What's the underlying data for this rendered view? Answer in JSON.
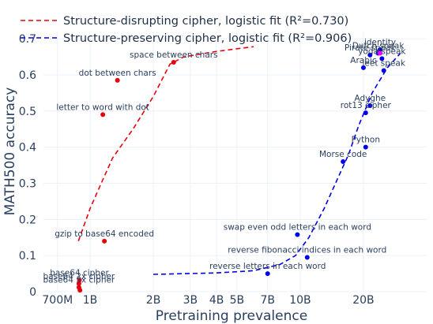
{
  "chart_data": {
    "type": "scatter",
    "xlabel": "Pretraining prevalence",
    "ylabel": "MATH500 accuracy",
    "x_scale": "log",
    "xlim": [
      600000000,
      40000000000
    ],
    "ylim": [
      0,
      0.72
    ],
    "grid": true,
    "legend_position": "top-left",
    "x_ticks": [
      {
        "value": 700000000,
        "label": "700M"
      },
      {
        "value": 1000000000,
        "label": "1B"
      },
      {
        "value": 2000000000,
        "label": "2B"
      },
      {
        "value": 3000000000,
        "label": "3B"
      },
      {
        "value": 4000000000,
        "label": "4B"
      },
      {
        "value": 5000000000,
        "label": "5B"
      },
      {
        "value": 7000000000,
        "label": "7B"
      },
      {
        "value": 10000000000,
        "label": "10B"
      },
      {
        "value": 20000000000,
        "label": "20B"
      }
    ],
    "y_ticks": [
      {
        "value": 0,
        "label": "0"
      },
      {
        "value": 0.1,
        "label": "0.1"
      },
      {
        "value": 0.2,
        "label": "0.2"
      },
      {
        "value": 0.3,
        "label": "0.3"
      },
      {
        "value": 0.4,
        "label": "0.4"
      },
      {
        "value": 0.5,
        "label": "0.5"
      },
      {
        "value": 0.6,
        "label": "0.6"
      },
      {
        "value": 0.7,
        "label": "0.7"
      }
    ],
    "series": [
      {
        "name": "Structure-disrupting cipher, logistic fit (R²=0.730)",
        "color": "#e8000b",
        "points": [
          {
            "x": 1350000000,
            "y": 0.585,
            "label": "dot between chars"
          },
          {
            "x": 2500000000,
            "y": 0.635,
            "label": "space between chars"
          },
          {
            "x": 1150000000,
            "y": 0.49,
            "label": "letter to word with dot"
          },
          {
            "x": 1170000000,
            "y": 0.14,
            "label": "gzip to base64 encoded"
          },
          {
            "x": 890000000,
            "y": 0.032,
            "label": "base64 cipher"
          },
          {
            "x": 885000000,
            "y": 0.022,
            "label": "base64 2x cipher"
          },
          {
            "x": 885000000,
            "y": 0.012,
            "label": "base64 3x cipher"
          },
          {
            "x": 895000000,
            "y": 0.004,
            "label": ""
          }
        ],
        "fit": [
          {
            "x": 880000000,
            "y": 0.14
          },
          {
            "x": 1000000000,
            "y": 0.23
          },
          {
            "x": 1130000000,
            "y": 0.3
          },
          {
            "x": 1280000000,
            "y": 0.37
          },
          {
            "x": 1600000000,
            "y": 0.45
          },
          {
            "x": 2000000000,
            "y": 0.54
          },
          {
            "x": 2400000000,
            "y": 0.63
          },
          {
            "x": 2800000000,
            "y": 0.65
          },
          {
            "x": 4000000000,
            "y": 0.665
          },
          {
            "x": 6000000000,
            "y": 0.678
          }
        ]
      },
      {
        "name": "Structure-preserving cipher, logistic fit (R²=0.906)",
        "color": "#0000e8",
        "points": [
          {
            "x": 24000000000,
            "y": 0.67,
            "label": "identity"
          },
          {
            "x": 21500000000,
            "y": 0.655,
            "label": "Pirate speak"
          },
          {
            "x": 23500000000,
            "y": 0.66,
            "label": "Dutch speak"
          },
          {
            "x": 24500000000,
            "y": 0.645,
            "label": "yoda speak"
          },
          {
            "x": 20000000000,
            "y": 0.62,
            "label": "Arabic"
          },
          {
            "x": 25000000000,
            "y": 0.612,
            "label": "leet speak"
          },
          {
            "x": 21500000000,
            "y": 0.515,
            "label": "Adyghe"
          },
          {
            "x": 20500000000,
            "y": 0.495,
            "label": "rot13 cipher"
          },
          {
            "x": 20500000000,
            "y": 0.4,
            "label": "Python"
          },
          {
            "x": 16000000000,
            "y": 0.36,
            "label": "Morse code"
          },
          {
            "x": 9700000000,
            "y": 0.158,
            "label": "swap even odd letters in each word"
          },
          {
            "x": 10800000000,
            "y": 0.095,
            "label": "reverse fibonacci indices in each word"
          },
          {
            "x": 7000000000,
            "y": 0.05,
            "label": "reverse letters in each word"
          }
        ],
        "fit": [
          {
            "x": 2000000000,
            "y": 0.048
          },
          {
            "x": 4000000000,
            "y": 0.052
          },
          {
            "x": 6000000000,
            "y": 0.058
          },
          {
            "x": 8000000000,
            "y": 0.075
          },
          {
            "x": 9500000000,
            "y": 0.1
          },
          {
            "x": 11000000000,
            "y": 0.15
          },
          {
            "x": 13000000000,
            "y": 0.23
          },
          {
            "x": 15000000000,
            "y": 0.31
          },
          {
            "x": 17000000000,
            "y": 0.38
          },
          {
            "x": 19000000000,
            "y": 0.46
          },
          {
            "x": 22000000000,
            "y": 0.55
          },
          {
            "x": 26000000000,
            "y": 0.62
          },
          {
            "x": 30000000000,
            "y": 0.66
          }
        ]
      }
    ],
    "highlight_points": [
      {
        "x": 24000000000,
        "y": 0.66,
        "color": "#ff00ff"
      }
    ]
  }
}
